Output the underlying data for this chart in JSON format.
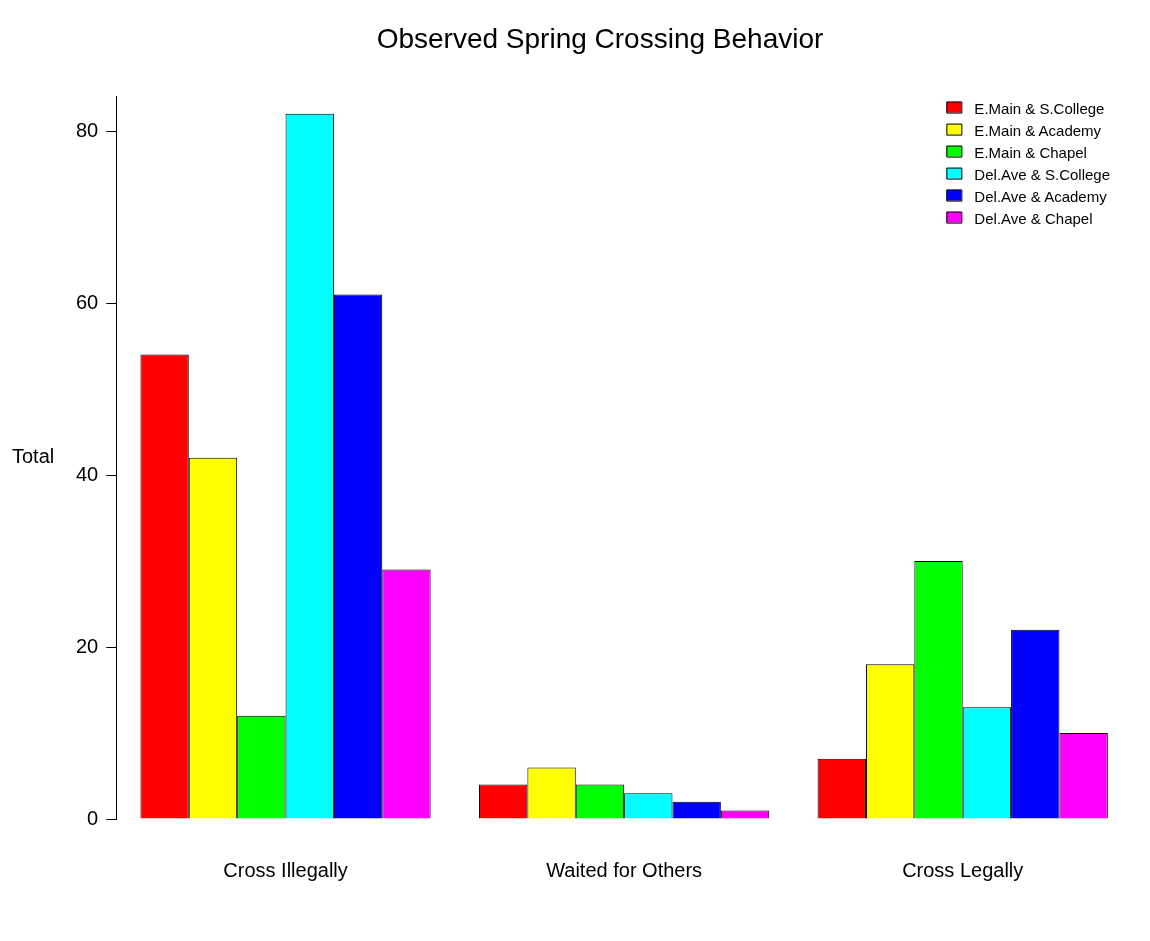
{
  "chart_data": {
    "type": "bar",
    "title": "Observed Spring Crossing Behavior",
    "ylabel": "Total",
    "categories": [
      "Cross Illegally",
      "Waited for Others",
      "Cross Legally"
    ],
    "series": [
      {
        "name": "E.Main & S.College",
        "color": "#ff0000",
        "values": [
          54,
          4,
          7
        ]
      },
      {
        "name": "E.Main & Academy",
        "color": "#ffff00",
        "values": [
          42,
          6,
          18
        ]
      },
      {
        "name": "E.Main & Chapel",
        "color": "#00ff00",
        "values": [
          12,
          4,
          30
        ]
      },
      {
        "name": "Del.Ave & S.College",
        "color": "#00ffff",
        "values": [
          82,
          3,
          13
        ]
      },
      {
        "name": "Del.Ave & Academy",
        "color": "#0000ff",
        "values": [
          61,
          2,
          22
        ]
      },
      {
        "name": "Del.Ave & Chapel",
        "color": "#ff00ff",
        "values": [
          29,
          1,
          10
        ]
      }
    ],
    "ylim": [
      0,
      84
    ],
    "yticks": [
      0,
      20,
      40,
      60,
      80
    ],
    "grid": false,
    "legend": "top right"
  }
}
